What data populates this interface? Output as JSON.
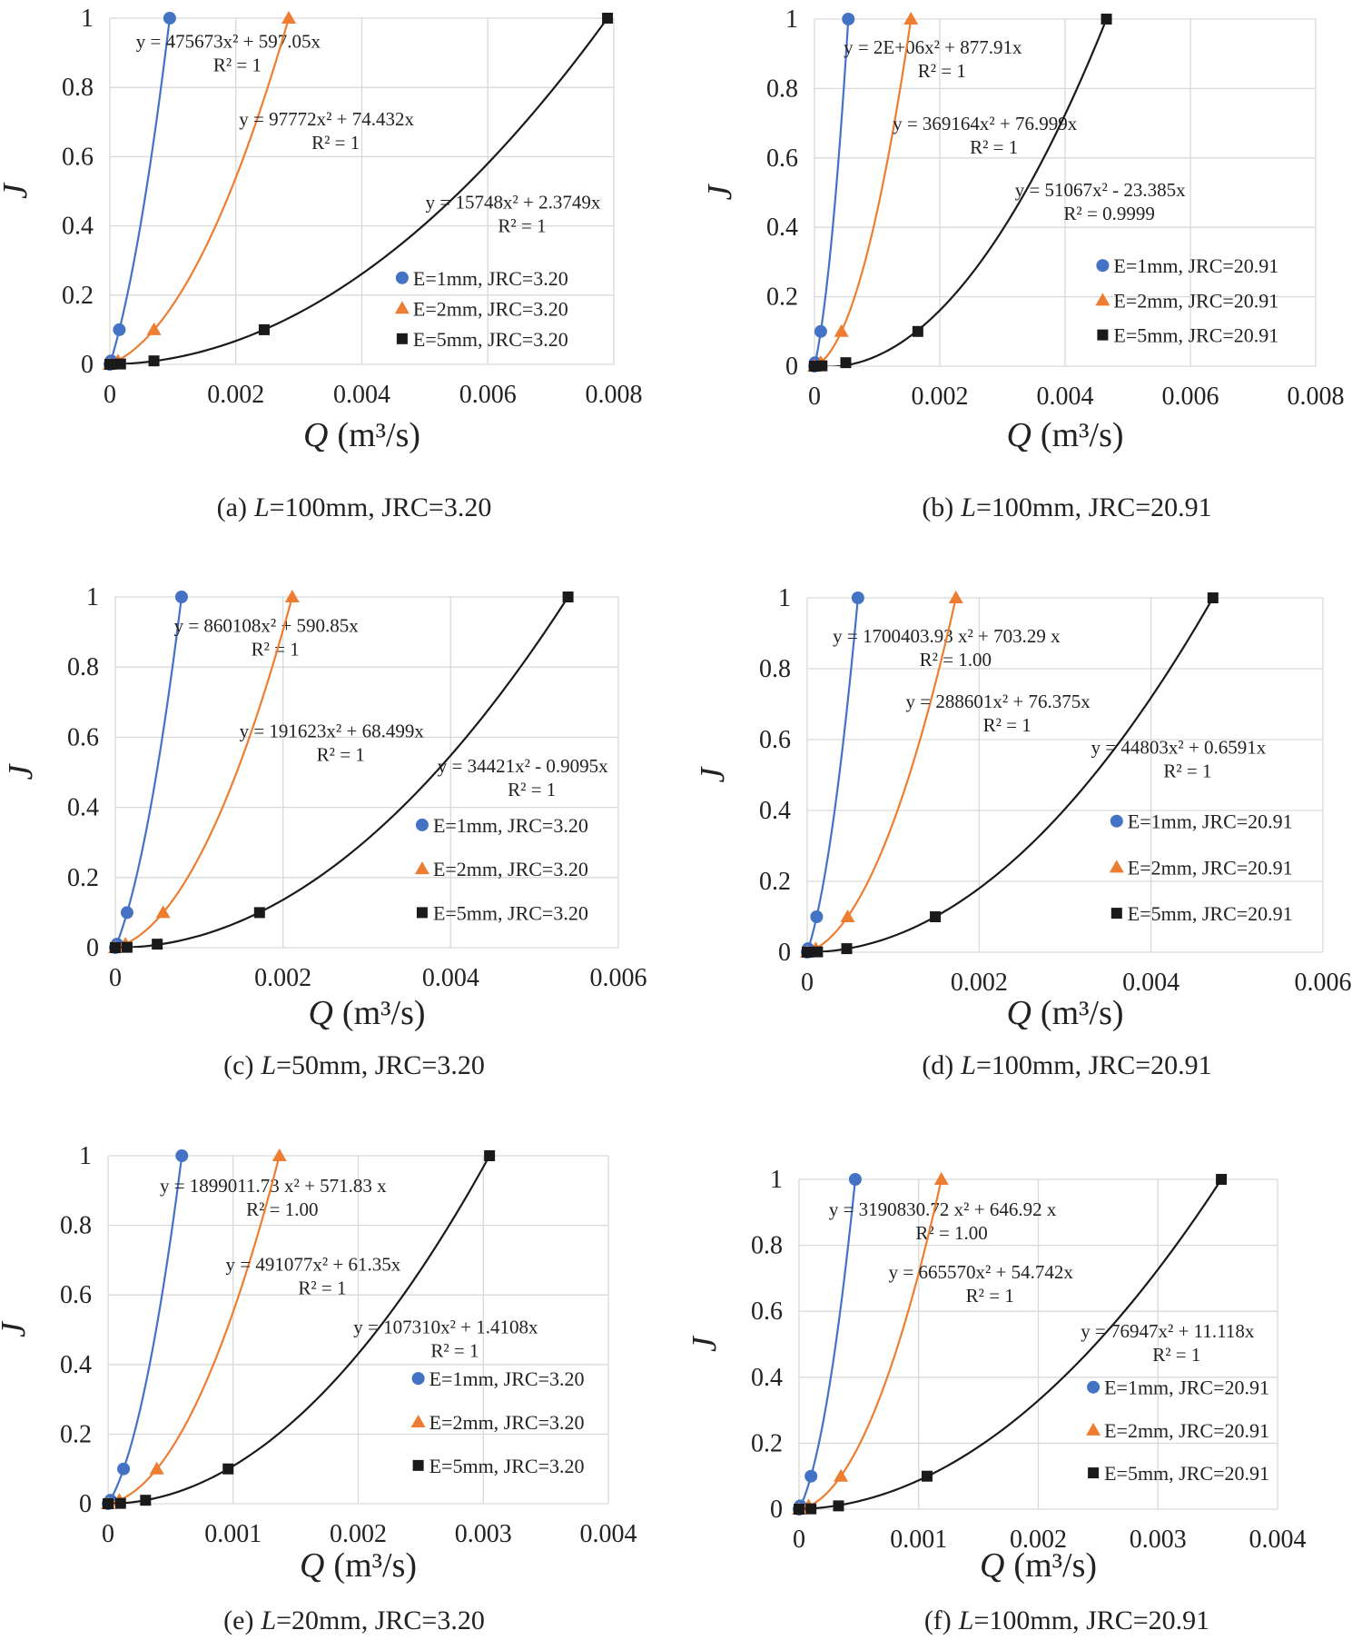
{
  "chart_data": [
    {
      "type": "scatter",
      "caption": [
        "(a)",
        "L",
        "=100mm, JRC=3.20"
      ],
      "x_label": [
        "Q",
        "(m³/s)"
      ],
      "y_label": "J",
      "xlim": [
        0,
        0.008
      ],
      "ylim": [
        0,
        1
      ],
      "xticks": [
        0,
        0.002,
        0.004,
        0.006,
        0.008
      ],
      "yticks": [
        0,
        0.2,
        0.4,
        0.6,
        0.8,
        1
      ],
      "grid": true,
      "series": [
        {
          "name": "E=1mm, JRC=3.20",
          "color": "#4472c4",
          "marker": "circle",
          "x": [
            0,
            2e-05,
            0.00015,
            0.00095
          ],
          "values": [
            0,
            0.01,
            0.1,
            1
          ],
          "equation": "y = 475673x² + 597.05x",
          "r2": "R² = 1"
        },
        {
          "name": "E=2mm, JRC=3.20",
          "color": "#ed7d31",
          "marker": "triangle",
          "x": [
            0,
            0.00013,
            0.0007,
            0.00284
          ],
          "values": [
            0,
            0.01,
            0.1,
            1
          ],
          "equation": "y = 97772x² + 74.432x",
          "r2": "R² = 1"
        },
        {
          "name": "E=5mm, JRC=3.20",
          "color": "#1a1a1a",
          "marker": "square",
          "x": [
            0,
            0.00017,
            0.0007,
            0.00245,
            0.0079
          ],
          "values": [
            0,
            0.001,
            0.01,
            0.1,
            1
          ],
          "equation": "y = 15748x² + 2.3749x",
          "r2": "R² = 1"
        }
      ]
    },
    {
      "type": "scatter",
      "caption": [
        "(b)",
        "L",
        "=100mm, JRC=20.91"
      ],
      "x_label": [
        "Q",
        "(m³/s)"
      ],
      "y_label": "J",
      "xlim": [
        0,
        0.008
      ],
      "ylim": [
        0,
        1
      ],
      "xticks": [
        0,
        0.002,
        0.004,
        0.006,
        0.008
      ],
      "yticks": [
        0,
        0.2,
        0.4,
        0.6,
        0.8,
        1
      ],
      "grid": true,
      "series": [
        {
          "name": "E=1mm, JRC=20.91",
          "color": "#4472c4",
          "marker": "circle",
          "x": [
            0,
            1e-05,
            0.0001,
            0.00054
          ],
          "values": [
            0,
            0.01,
            0.1,
            1
          ],
          "equation": "y = 2E+06x² + 877.91x",
          "r2": "R² = 1"
        },
        {
          "name": "E=2mm, JRC=20.91",
          "color": "#ed7d31",
          "marker": "triangle",
          "x": [
            0,
            0.0001,
            0.00043,
            0.00154
          ],
          "values": [
            0,
            0.01,
            0.1,
            1
          ],
          "equation": "y = 369164x² + 76.999x",
          "r2": "R² = 1"
        },
        {
          "name": "E=5mm, JRC=20.91",
          "color": "#1a1a1a",
          "marker": "square",
          "x": [
            0,
            0.00012,
            0.0005,
            0.00165,
            0.00466
          ],
          "values": [
            0,
            0.001,
            0.01,
            0.1,
            1
          ],
          "equation": "y = 51067x² - 23.385x",
          "r2": "R² = 0.9999"
        }
      ]
    },
    {
      "type": "scatter",
      "caption": [
        "(c)",
        "L",
        "=50mm, JRC=3.20"
      ],
      "x_label": [
        "Q",
        "(m³/s)"
      ],
      "y_label": "J",
      "xlim": [
        0,
        0.006
      ],
      "ylim": [
        0,
        1
      ],
      "xticks": [
        0,
        0.002,
        0.004,
        0.006
      ],
      "yticks": [
        0,
        0.2,
        0.4,
        0.6,
        0.8,
        1
      ],
      "grid": true,
      "series": [
        {
          "name": "E=1mm, JRC=3.20",
          "color": "#4472c4",
          "marker": "circle",
          "x": [
            0,
            2e-05,
            0.00014,
            0.00079
          ],
          "values": [
            0,
            0.01,
            0.1,
            1
          ],
          "equation": "y = 860108x² + 590.85x",
          "r2": "R² = 1"
        },
        {
          "name": "E=2mm, JRC=3.20",
          "color": "#ed7d31",
          "marker": "triangle",
          "x": [
            0,
            0.00012,
            0.00057,
            0.00211
          ],
          "values": [
            0,
            0.01,
            0.1,
            1
          ],
          "equation": "y = 191623x² + 68.499x",
          "r2": "R² = 1"
        },
        {
          "name": "E=5mm, JRC=3.20",
          "color": "#1a1a1a",
          "marker": "square",
          "x": [
            0,
            0.00014,
            0.0005,
            0.00172,
            0.0054
          ],
          "values": [
            0,
            0.001,
            0.01,
            0.1,
            1
          ],
          "equation": "y = 34421x² - 0.9095x",
          "r2": "R² = 1"
        }
      ]
    },
    {
      "type": "scatter",
      "caption": [
        "(d)",
        "L",
        "=100mm, JRC=20.91"
      ],
      "x_label": [
        "Q",
        "(m³/s)"
      ],
      "y_label": "J",
      "xlim": [
        0,
        0.006
      ],
      "ylim": [
        0,
        1
      ],
      "xticks": [
        0,
        0.002,
        0.004,
        0.006
      ],
      "yticks": [
        0,
        0.2,
        0.4,
        0.6,
        0.8,
        1
      ],
      "grid": true,
      "series": [
        {
          "name": "E=1mm, JRC=20.91",
          "color": "#4472c4",
          "marker": "circle",
          "x": [
            0,
            1e-05,
            0.00011,
            0.00059
          ],
          "values": [
            0,
            0.01,
            0.1,
            1
          ],
          "equation": "y = 1700403.93 x² + 703.29 x",
          "r2": "R² = 1.00"
        },
        {
          "name": "E=2mm, JRC=20.91",
          "color": "#ed7d31",
          "marker": "triangle",
          "x": [
            0,
            0.0001,
            0.00047,
            0.00173
          ],
          "values": [
            0,
            0.01,
            0.1,
            1
          ],
          "equation": "y = 288601x² + 76.375x",
          "r2": "R² = 1"
        },
        {
          "name": "E=5mm, JRC=20.91",
          "color": "#1a1a1a",
          "marker": "square",
          "x": [
            0,
            0.00012,
            0.00046,
            0.00149,
            0.00472
          ],
          "values": [
            0,
            0.001,
            0.01,
            0.1,
            1
          ],
          "equation": "y = 44803x² + 0.6591x",
          "r2": "R² = 1"
        }
      ]
    },
    {
      "type": "scatter",
      "caption": [
        "(e)",
        "L",
        "=20mm, JRC=3.20"
      ],
      "x_label": [
        "Q",
        "(m³/s)"
      ],
      "y_label": "J",
      "xlim": [
        0,
        0.004
      ],
      "ylim": [
        0,
        1
      ],
      "xticks": [
        0,
        0.001,
        0.002,
        0.003,
        0.004
      ],
      "yticks": [
        0,
        0.2,
        0.4,
        0.6,
        0.8,
        1
      ],
      "grid": true,
      "series": [
        {
          "name": "E=1mm, JRC=3.20",
          "color": "#4472c4",
          "marker": "circle",
          "x": [
            0,
            2e-05,
            0.000124,
            0.00059
          ],
          "values": [
            0,
            0.01,
            0.1,
            1
          ],
          "equation": "y = 1899011.73 x² + 571.83 x",
          "r2": "R² = 1.00"
        },
        {
          "name": "E=2mm, JRC=3.20",
          "color": "#ed7d31",
          "marker": "triangle",
          "x": [
            0,
            9e-05,
            0.00039,
            0.00137
          ],
          "values": [
            0,
            0.01,
            0.1,
            1
          ],
          "equation": "y = 491077x² + 61.35x",
          "r2": "R² = 1"
        },
        {
          "name": "E=5mm, JRC=3.20",
          "color": "#1a1a1a",
          "marker": "square",
          "x": [
            0,
            0.0001,
            0.0003,
            0.00096,
            0.00305
          ],
          "values": [
            0,
            0.001,
            0.01,
            0.1,
            1
          ],
          "equation": "y = 107310x² + 1.4108x",
          "r2": "R² = 1"
        }
      ]
    },
    {
      "type": "scatter",
      "caption": [
        "(f)",
        "L",
        "=100mm, JRC=20.91"
      ],
      "x_label": [
        "Q",
        "(m³/s)"
      ],
      "y_label": "J",
      "xlim": [
        0,
        0.004
      ],
      "ylim": [
        0,
        1
      ],
      "xticks": [
        0,
        0.001,
        0.002,
        0.003,
        0.004
      ],
      "yticks": [
        0,
        0.2,
        0.4,
        0.6,
        0.8,
        1
      ],
      "grid": true,
      "series": [
        {
          "name": "E=1mm, JRC=20.91",
          "color": "#4472c4",
          "marker": "circle",
          "x": [
            0,
            1e-05,
            0.0001,
            0.00047
          ],
          "values": [
            0,
            0.01,
            0.1,
            1
          ],
          "equation": "y = 3190830.72 x² + 646.92 x",
          "r2": "R² = 1.00"
        },
        {
          "name": "E=2mm, JRC=20.91",
          "color": "#ed7d31",
          "marker": "triangle",
          "x": [
            0,
            8e-05,
            0.00035,
            0.00119
          ],
          "values": [
            0,
            0.01,
            0.1,
            1
          ],
          "equation": "y = 665570x² + 54.742x",
          "r2": "R² = 1"
        },
        {
          "name": "E=5mm, JRC=20.91",
          "color": "#1a1a1a",
          "marker": "square",
          "x": [
            0,
            0.0001,
            0.00033,
            0.00107,
            0.00353
          ],
          "values": [
            0,
            0.001,
            0.01,
            0.1,
            1
          ],
          "equation": "y = 76947x² + 11.118x",
          "r2": "R² = 1"
        }
      ]
    }
  ]
}
